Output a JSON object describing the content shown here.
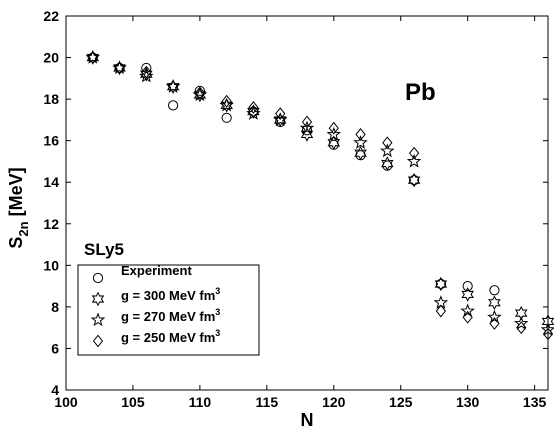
{
  "chart_data": {
    "type": "scatter",
    "title": "",
    "xlabel": "N",
    "ylabel_main": "S",
    "ylabel_sub": "2n",
    "ylabel_unit": " [MeV]",
    "xlim": [
      100,
      136
    ],
    "ylim": [
      4,
      22
    ],
    "xticks": [
      100,
      105,
      110,
      115,
      120,
      125,
      130,
      135
    ],
    "yticks": [
      4,
      6,
      8,
      10,
      12,
      14,
      16,
      18,
      20,
      22
    ],
    "grid": false,
    "legend_position": "bottom-left",
    "annotations": {
      "element": "Pb",
      "force": "SLy5"
    },
    "series": [
      {
        "name": "Experiment",
        "label_text": "Experiment",
        "marker": "circle",
        "x": [
          102,
          104,
          106,
          108,
          110,
          112,
          114,
          116,
          118,
          120,
          122,
          124,
          126,
          128,
          130,
          132
        ],
        "y": [
          20.0,
          19.5,
          19.5,
          17.7,
          18.4,
          17.1,
          17.4,
          16.9,
          16.5,
          15.8,
          15.3,
          14.8,
          14.1,
          9.1,
          9.0,
          8.8
        ]
      },
      {
        "name": "g = 300 MeV fm3",
        "label_main": "g = 300 MeV fm",
        "label_sup": "3",
        "marker": "star6",
        "x": [
          102,
          104,
          106,
          108,
          110,
          112,
          114,
          116,
          118,
          120,
          122,
          124,
          126,
          128,
          130,
          132,
          134,
          136
        ],
        "y": [
          20.0,
          19.5,
          19.2,
          18.6,
          18.2,
          17.7,
          17.4,
          17.0,
          16.3,
          15.9,
          15.4,
          14.9,
          14.1,
          9.1,
          8.6,
          8.2,
          7.7,
          7.3
        ]
      },
      {
        "name": "g = 270 MeV fm3",
        "label_main": "g = 270 MeV fm",
        "label_sup": "3",
        "marker": "star5",
        "x": [
          102,
          104,
          106,
          108,
          110,
          112,
          114,
          116,
          118,
          120,
          122,
          124,
          126,
          128,
          130,
          132,
          134,
          136
        ],
        "y": [
          20.0,
          19.5,
          19.1,
          18.6,
          18.2,
          17.7,
          17.3,
          17.0,
          16.6,
          16.3,
          15.9,
          15.5,
          15.0,
          8.2,
          7.8,
          7.5,
          7.2,
          6.9
        ]
      },
      {
        "name": "g = 250 MeV fm3",
        "label_main": "g = 250 MeV fm",
        "label_sup": "3",
        "marker": "diamond",
        "x": [
          102,
          104,
          106,
          108,
          110,
          112,
          114,
          116,
          118,
          120,
          122,
          124,
          126,
          128,
          130,
          132,
          134,
          136
        ],
        "y": [
          20.0,
          19.5,
          19.3,
          18.6,
          18.3,
          17.9,
          17.6,
          17.3,
          16.9,
          16.6,
          16.3,
          15.9,
          15.4,
          7.8,
          7.5,
          7.2,
          7.0,
          6.7
        ]
      }
    ]
  }
}
